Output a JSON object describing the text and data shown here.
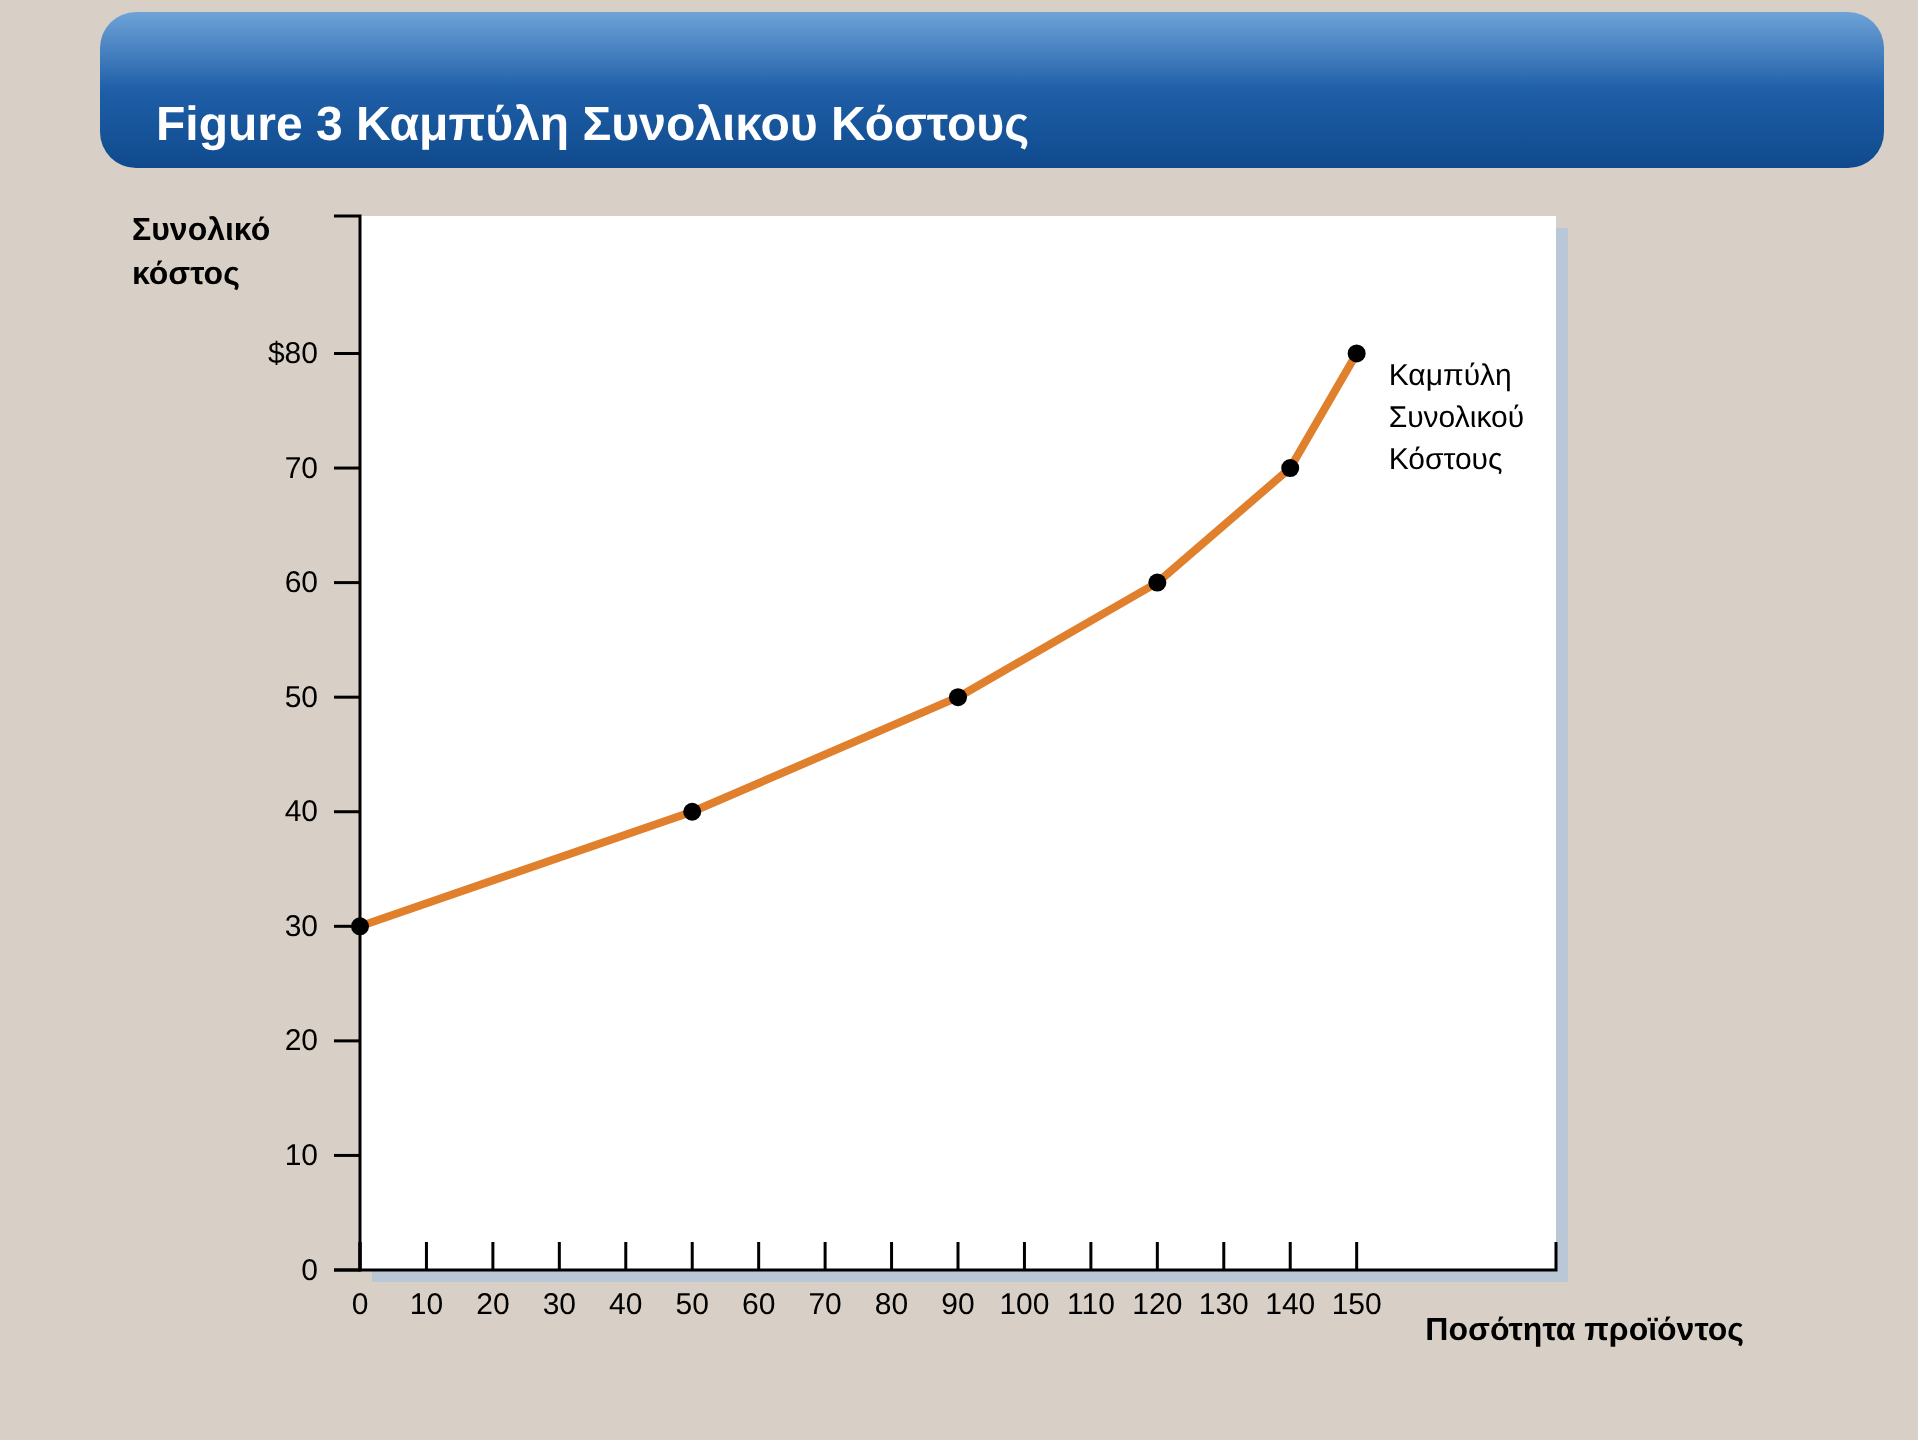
{
  "chart_data": {
    "type": "line",
    "title": "Figure 3 Καμπύλη Συνολικου Κόστους",
    "ylabel": "Συνολικό κόστος",
    "xlabel": "Ποσότητα προϊόντος",
    "x": [
      0,
      50,
      90,
      120,
      140,
      150
    ],
    "series": [
      {
        "name": "Καμπύλη Συνολικού Κόστους",
        "color": "#e07f2c",
        "values": [
          30,
          40,
          50,
          60,
          70,
          80
        ]
      }
    ],
    "xlim": [
      0,
      180
    ],
    "xticks": [
      0,
      10,
      20,
      30,
      40,
      50,
      60,
      70,
      80,
      90,
      100,
      110,
      120,
      130,
      140,
      150
    ],
    "ylim": [
      0,
      92
    ],
    "yticks": [
      0,
      10,
      20,
      30,
      40,
      50,
      60,
      70,
      {
        "value": 80,
        "label": "$80"
      }
    ],
    "marker": "circle",
    "line_style": "solid",
    "grid": false,
    "legend": false
  }
}
